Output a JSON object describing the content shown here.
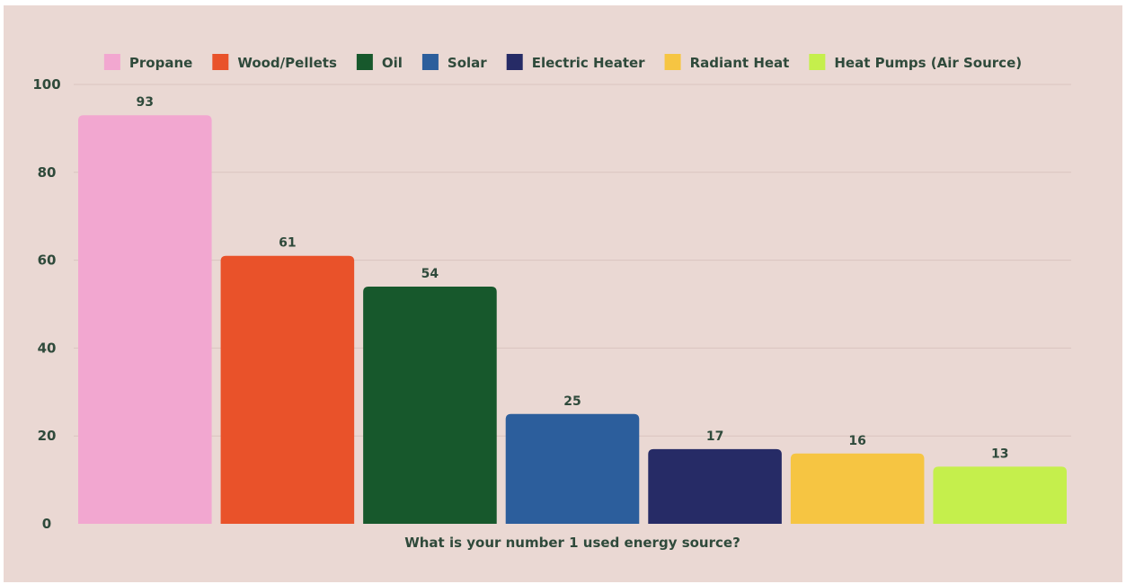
{
  "chart_data": {
    "type": "bar",
    "categories": [
      "Propane",
      "Wood/Pellets",
      "Oil",
      "Solar",
      "Electric Heater",
      "Radiant Heat",
      "Heat Pumps (Air Source)"
    ],
    "values": [
      93,
      61,
      54,
      25,
      17,
      16,
      13
    ],
    "colors": [
      "#f2a7d0",
      "#e9522a",
      "#17582c",
      "#2c5e9c",
      "#262b66",
      "#f6c542",
      "#c5ef4c"
    ],
    "title": "",
    "xlabel": "What is your number 1 used energy source?",
    "ylabel": "",
    "ylim": [
      0,
      100
    ],
    "yticks": [
      0,
      20,
      40,
      60,
      80,
      100
    ],
    "grid": true,
    "legend": {
      "placement": "top",
      "entries": [
        "Propane",
        "Wood/Pellets",
        "Oil",
        "Solar",
        "Electric Heater",
        "Radiant Heat",
        "Heat Pumps (Air Source)"
      ]
    },
    "data_labels": [
      "93",
      "61",
      "54",
      "25",
      "17",
      "16",
      "13"
    ]
  }
}
